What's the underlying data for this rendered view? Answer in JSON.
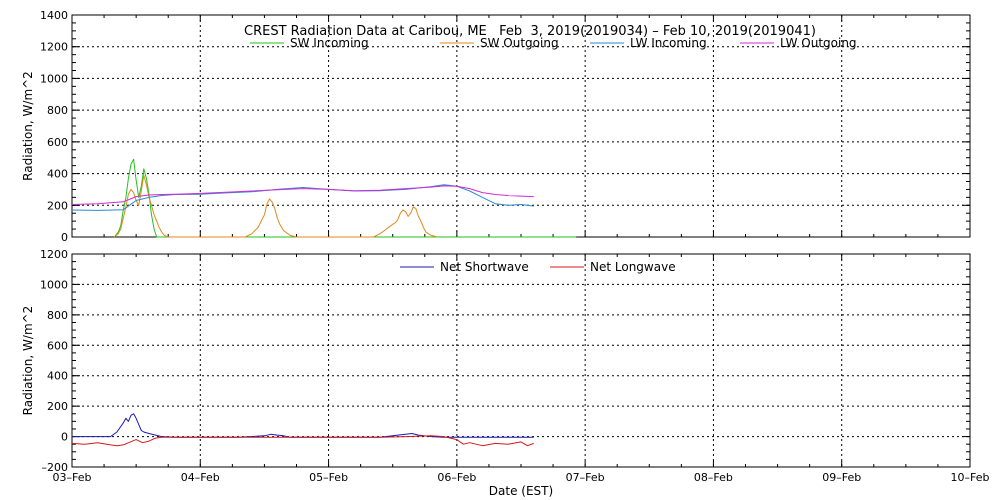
{
  "chart_data": [
    {
      "type": "line",
      "title": "CREST Radiation Data at Caribou, ME   Feb  3, 2019(2019034) – Feb 10, 2019(2019041)",
      "xlabel": "",
      "ylabel": "Radiation, W/m^2",
      "ylim": [
        0,
        1400
      ],
      "yticks": [
        0,
        200,
        400,
        600,
        800,
        1000,
        1200,
        1400
      ],
      "ytick_labels": [
        "0",
        "200",
        "400",
        "600",
        "800",
        "1000",
        "1200",
        "1400"
      ],
      "xlim": [
        0,
        7
      ],
      "grid": true,
      "legend": "top",
      "series": [
        {
          "name": "SW Incoming",
          "color": "#22c222",
          "x": [
            0.33,
            0.36,
            0.38,
            0.4,
            0.42,
            0.44,
            0.46,
            0.48,
            0.5,
            0.52,
            0.54,
            0.56,
            0.58,
            0.6,
            0.62,
            0.64,
            0.66,
            0.7,
            0.75,
            3.5,
            3.55,
            3.6,
            3.63,
            3.66,
            3.68,
            3.7,
            3.72,
            3.74,
            3.76,
            3.78,
            3.8,
            3.83,
            3.86,
            3.9,
            3.93
          ],
          "y": [
            0,
            30,
            70,
            170,
            250,
            370,
            460,
            490,
            360,
            250,
            320,
            430,
            370,
            270,
            140,
            50,
            0,
            0,
            0,
            0,
            0,
            0,
            0,
            0,
            0,
            0,
            0,
            0,
            0,
            0,
            0,
            0,
            0,
            0,
            0
          ]
        },
        {
          "name": "SW Outgoing",
          "color": "#e08a1c",
          "x": [
            0.33,
            0.36,
            0.38,
            0.4,
            0.42,
            0.44,
            0.46,
            0.48,
            0.5,
            0.52,
            0.54,
            0.56,
            0.58,
            0.6,
            0.62,
            0.64,
            0.66,
            0.68,
            0.7,
            0.72,
            0.75,
            1.35,
            1.4,
            1.45,
            1.5,
            1.52,
            1.54,
            1.56,
            1.58,
            1.6,
            1.62,
            1.65,
            1.7,
            1.75,
            1.8,
            2.35,
            2.4,
            2.45,
            2.5,
            2.52,
            2.54,
            2.56,
            2.58,
            2.6,
            2.62,
            2.64,
            2.66,
            2.68,
            2.7,
            2.72,
            2.74,
            2.76,
            2.8,
            2.85
          ],
          "y": [
            0,
            20,
            50,
            120,
            190,
            270,
            300,
            280,
            230,
            200,
            290,
            390,
            330,
            250,
            200,
            140,
            100,
            60,
            30,
            10,
            0,
            0,
            20,
            60,
            140,
            210,
            240,
            220,
            180,
            120,
            80,
            40,
            10,
            0,
            0,
            0,
            20,
            50,
            80,
            90,
            110,
            150,
            170,
            160,
            130,
            150,
            190,
            180,
            130,
            100,
            60,
            30,
            10,
            0
          ]
        },
        {
          "name": "LW Incoming",
          "color": "#2a8ad0",
          "x": [
            0,
            0.2,
            0.4,
            0.5,
            0.6,
            0.7,
            0.8,
            1,
            1.2,
            1.4,
            1.6,
            1.8,
            2,
            2.2,
            2.4,
            2.6,
            2.8,
            2.9,
            3,
            3.1,
            3.2,
            3.3,
            3.4,
            3.5,
            3.6
          ],
          "y": [
            170,
            168,
            172,
            230,
            250,
            262,
            268,
            270,
            278,
            285,
            300,
            312,
            300,
            290,
            292,
            300,
            318,
            330,
            320,
            290,
            250,
            210,
            200,
            205,
            195
          ]
        },
        {
          "name": "LW Outgoing",
          "color": "#d42ad4",
          "x": [
            0,
            0.2,
            0.4,
            0.5,
            0.6,
            0.7,
            0.8,
            1,
            1.2,
            1.4,
            1.6,
            1.8,
            2,
            2.2,
            2.4,
            2.6,
            2.8,
            2.9,
            3,
            3.1,
            3.2,
            3.3,
            3.4,
            3.5,
            3.6
          ],
          "y": [
            205,
            210,
            222,
            255,
            265,
            268,
            270,
            275,
            282,
            290,
            298,
            305,
            300,
            292,
            295,
            305,
            315,
            322,
            320,
            305,
            280,
            268,
            262,
            258,
            255
          ]
        }
      ]
    },
    {
      "type": "line",
      "title": "",
      "xlabel": "Date (EST)",
      "ylabel": "Radiation, W/m^2",
      "ylim": [
        -200,
        1200
      ],
      "yticks": [
        -200,
        0,
        200,
        400,
        600,
        800,
        1000,
        1200
      ],
      "ytick_labels": [
        "–200",
        "0",
        "200",
        "400",
        "600",
        "800",
        "1000",
        "1200"
      ],
      "xlim": [
        0,
        7
      ],
      "categories": [
        "03–Feb",
        "04–Feb",
        "05–Feb",
        "06–Feb",
        "07–Feb",
        "08–Feb",
        "09–Feb",
        "10–Feb"
      ],
      "grid": true,
      "legend": "top",
      "series": [
        {
          "name": "Net Shortwave",
          "color": "#1a1ab4",
          "x": [
            0,
            0.3,
            0.35,
            0.4,
            0.42,
            0.44,
            0.46,
            0.48,
            0.5,
            0.52,
            0.54,
            0.56,
            0.6,
            0.65,
            0.7,
            0.8,
            1,
            1.3,
            1.5,
            1.55,
            1.6,
            1.65,
            1.7,
            2,
            2.4,
            2.5,
            2.6,
            2.65,
            2.7,
            2.8,
            2.9,
            3,
            3.2,
            3.4,
            3.6
          ],
          "y": [
            0,
            0,
            30,
            90,
            120,
            100,
            140,
            150,
            120,
            80,
            40,
            30,
            20,
            10,
            0,
            -5,
            -5,
            -5,
            5,
            15,
            10,
            5,
            -5,
            -5,
            -5,
            5,
            15,
            20,
            10,
            0,
            -5,
            -5,
            -5,
            -5,
            -5
          ]
        },
        {
          "name": "Net Longwave",
          "color": "#d41a1a",
          "x": [
            0,
            0.1,
            0.2,
            0.3,
            0.35,
            0.4,
            0.5,
            0.55,
            0.6,
            0.65,
            0.7,
            0.8,
            1,
            1.4,
            1.6,
            2,
            2.4,
            2.6,
            2.8,
            2.9,
            3,
            3.05,
            3.1,
            3.2,
            3.3,
            3.4,
            3.5,
            3.55,
            3.6
          ],
          "y": [
            -45,
            -50,
            -40,
            -55,
            -60,
            -55,
            -20,
            -40,
            -30,
            -10,
            -5,
            -5,
            -5,
            -5,
            -5,
            -5,
            -5,
            0,
            5,
            0,
            -20,
            -50,
            -40,
            -60,
            -45,
            -50,
            -35,
            -60,
            -45
          ]
        }
      ]
    }
  ]
}
